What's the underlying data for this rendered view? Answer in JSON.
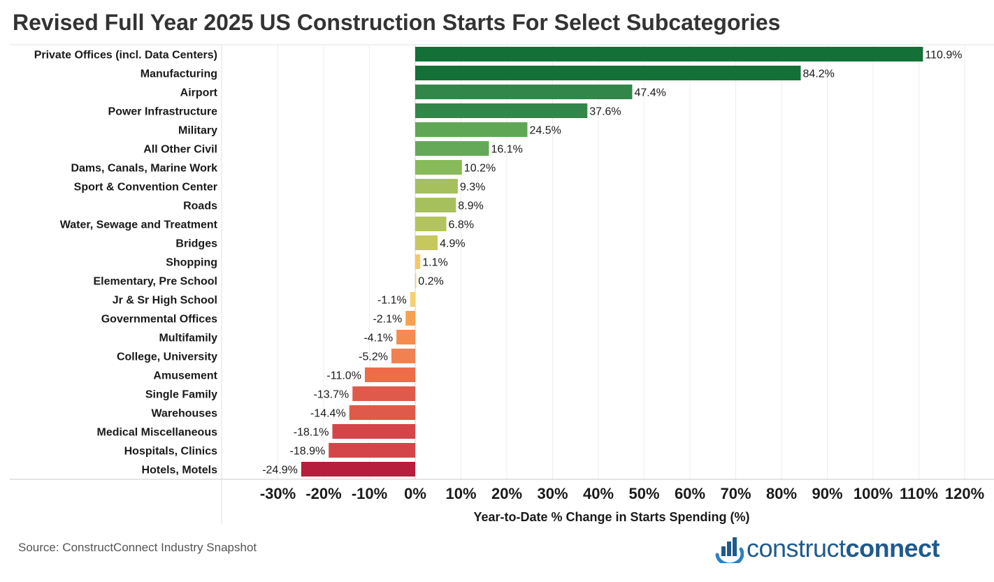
{
  "chart_data": {
    "type": "bar",
    "orientation": "horizontal",
    "title": "Revised Full Year 2025 US Construction Starts For Select Subcategories",
    "xlabel": "Year-to-Date % Change in Starts Spending (%)",
    "ylabel": "",
    "xlim": [
      -35,
      125
    ],
    "grid": true,
    "categories": [
      "Private Offices (incl. Data Centers)",
      "Manufacturing",
      "Airport",
      "Power Infrastructure",
      "Military",
      "All Other Civil",
      "Dams, Canals, Marine Work",
      "Sport & Convention Center",
      "Roads",
      "Water, Sewage and Treatment",
      "Bridges",
      "Shopping",
      "Elementary, Pre School",
      "Jr & Sr High School",
      "Governmental Offices",
      "Multifamily",
      "College, University",
      "Amusement",
      "Single Family",
      "Warehouses",
      "Medical Miscellaneous",
      "Hospitals, Clinics",
      "Hotels, Motels"
    ],
    "values": [
      110.9,
      84.2,
      47.4,
      37.6,
      24.5,
      16.1,
      10.2,
      9.3,
      8.9,
      6.8,
      4.9,
      1.1,
      0.2,
      -1.1,
      -2.1,
      -4.1,
      -5.2,
      -11.0,
      -13.7,
      -14.4,
      -18.1,
      -18.9,
      -24.9
    ],
    "value_labels": [
      "110.9%",
      "84.2%",
      "47.4%",
      "37.6%",
      "24.5%",
      "16.1%",
      "10.2%",
      "9.3%",
      "8.9%",
      "6.8%",
      "4.9%",
      "1.1%",
      "0.2%",
      "-1.1%",
      "-2.1%",
      "-4.1%",
      "-5.2%",
      "-11.0%",
      "-13.7%",
      "-14.4%",
      "-18.1%",
      "-18.9%",
      "-24.9%"
    ],
    "colors": [
      "#137036",
      "#137036",
      "#33864a",
      "#33864a",
      "#5fa755",
      "#64a958",
      "#87bb59",
      "#a5c05c",
      "#a5c05c",
      "#b4c45c",
      "#c6c85d",
      "#f6c865",
      "#f8ce6d",
      "#f6cf6e",
      "#f6a14f",
      "#f58b4e",
      "#f18150",
      "#ee6c49",
      "#e05a4b",
      "#e05a4b",
      "#d4454a",
      "#d4454a",
      "#b71d3c"
    ],
    "xticks": [
      -30,
      -20,
      -10,
      0,
      10,
      20,
      30,
      40,
      50,
      60,
      70,
      80,
      90,
      100,
      110,
      120
    ],
    "xtick_labels": [
      "-30%",
      "-20%",
      "-10%",
      "0%",
      "10%",
      "20%",
      "30%",
      "40%",
      "50%",
      "60%",
      "70%",
      "80%",
      "90%",
      "100%",
      "110%",
      "120%"
    ]
  },
  "footer": {
    "source": "Source: ConstructConnect Industry Snapshot",
    "logo_text_a": "construct",
    "logo_text_b": "connect",
    "logo_icon": "bar-chart-globe-icon"
  }
}
